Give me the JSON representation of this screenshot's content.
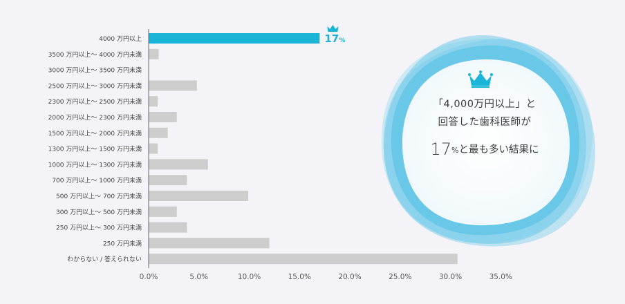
{
  "chart_data": {
    "type": "bar",
    "orientation": "horizontal",
    "categories": [
      "4000 万円以上",
      "3500 万円以上～ 4000 万円未満",
      "3000 万円以上～ 3500 万円未満",
      "2500 万円以上～ 3000 万円未満",
      "2300 万円以上～ 2500 万円未満",
      "2000 万円以上～ 2300 万円未満",
      "1500 万円以上～ 2000 万円未満",
      "1300 万円以上～ 1500 万円未満",
      "1000 万円以上～ 1300 万円未満",
      "700 万円以上～ 1000 万円未満",
      "500 万円以上～ 700 万円未満",
      "300 万円以上～ 500 万円未満",
      "250 万円以上～ 300 万円未満",
      "250 万円未満",
      "わからない / 答えられない"
    ],
    "values": [
      17,
      1.0,
      0,
      4.8,
      0.9,
      2.8,
      1.9,
      0.9,
      5.9,
      3.8,
      9.9,
      2.8,
      3.8,
      12.0,
      30.7
    ],
    "highlight_index": 0,
    "highlight_label": "17",
    "highlight_unit": "%",
    "xlim": [
      0,
      35
    ],
    "xticks": [
      "0.0%",
      "5.0%",
      "10.0%",
      "15.0%",
      "20.0%",
      "25.0%",
      "30.0%",
      "35.0%"
    ],
    "grid": false,
    "title": "",
    "xlabel": "",
    "ylabel": ""
  },
  "colors": {
    "highlight": "#1ab4d7",
    "bar": "#cdcdcd",
    "axis": "#6a6a6a",
    "background": "#f4f3f7"
  },
  "callout": {
    "icon": "crown-icon",
    "line1": "「4,000万円以上」と",
    "line2": "回答した歯科医師が",
    "big_number": "17",
    "percent": "%",
    "line3_rest": "と最も多い結果に"
  }
}
